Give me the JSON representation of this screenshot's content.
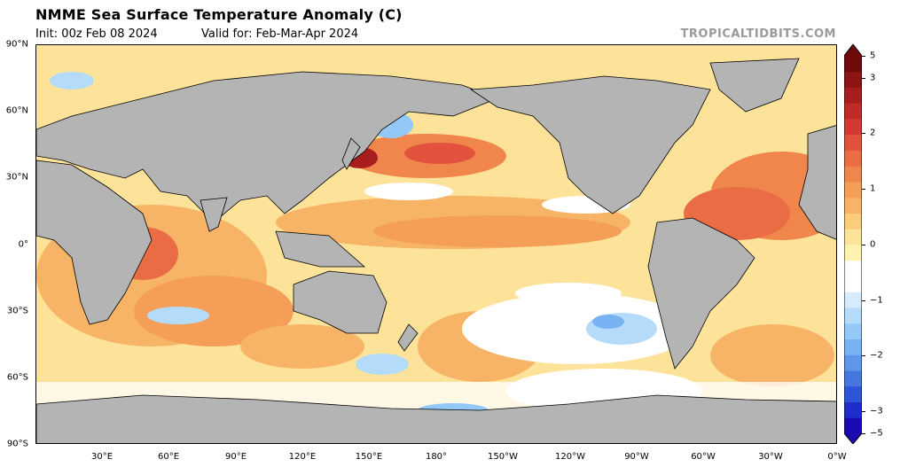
{
  "header": {
    "title": "NMME Sea Surface Temperature Anomaly (C)",
    "init": "Init: 00z Feb 08 2024",
    "valid": "Valid for: Feb-Mar-Apr 2024",
    "credit": "TROPICALTIDBITS.COM"
  },
  "map": {
    "projection": "equirectangular",
    "central_longitude": 180,
    "land_color": "#b4b4b4",
    "lat_labels": [
      "90°N",
      "60°N",
      "30°N",
      "0°",
      "30°S",
      "60°S",
      "90°S"
    ],
    "lon_labels": [
      "30°E",
      "60°E",
      "90°E",
      "120°E",
      "150°E",
      "180°",
      "150°W",
      "120°W",
      "90°W",
      "60°W",
      "30°W",
      "0°W"
    ]
  },
  "colorbar": {
    "labels": [
      "5",
      "3",
      "2",
      "1",
      "0",
      "−1",
      "−2",
      "−3",
      "−5"
    ],
    "colors": [
      "#1a0bb0",
      "#1e2ec8",
      "#2e55d8",
      "#4677e0",
      "#5e96ea",
      "#78b2f2",
      "#94c8f6",
      "#b4dcfa",
      "#d6ecfc",
      "#ffffff",
      "#ffffff",
      "#fff2b0",
      "#fde39a",
      "#fbcc7a",
      "#f8b466",
      "#f49e58",
      "#f0864c",
      "#ea6c44",
      "#e2523c",
      "#d43a32",
      "#c02a28",
      "#a81e1e",
      "#8e1414",
      "#6e0a0a"
    ]
  }
}
